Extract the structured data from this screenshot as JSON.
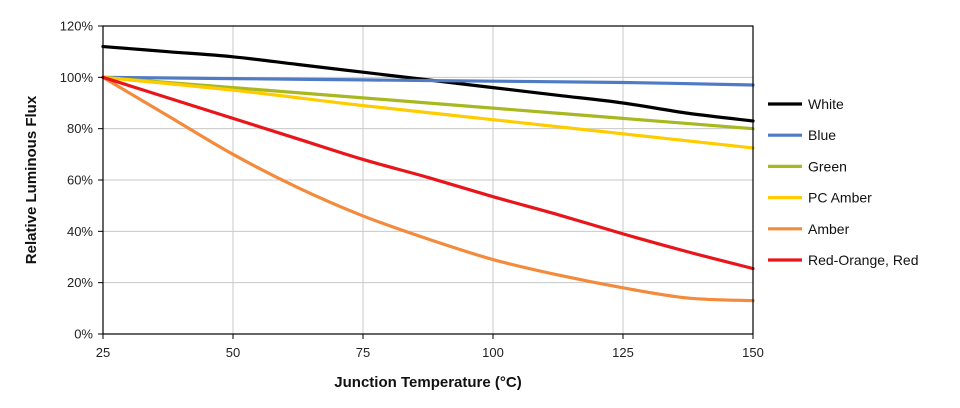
{
  "chart_data": {
    "type": "line",
    "xlabel": "Junction Temperature (°C)",
    "ylabel": "Relative Luminous Flux",
    "xlim": [
      25,
      150
    ],
    "ylim": [
      0,
      120
    ],
    "x_ticks": [
      "25",
      "50",
      "75",
      "100",
      "125",
      "150"
    ],
    "y_ticks": [
      "0%",
      "20%",
      "40%",
      "60%",
      "80%",
      "100%",
      "120%"
    ],
    "grid": true,
    "legend_position": "right",
    "series": [
      {
        "name": "White",
        "color": "#000000",
        "x": [
          25,
          37.5,
          50,
          62.5,
          75,
          87.5,
          100,
          112.5,
          125,
          137.5,
          150
        ],
        "y": [
          112,
          110,
          108,
          105,
          102,
          99,
          96,
          93,
          90,
          86,
          83
        ]
      },
      {
        "name": "Blue",
        "color": "#4f7bc4",
        "x": [
          25,
          50,
          75,
          100,
          125,
          150
        ],
        "y": [
          100,
          99.5,
          99,
          98.5,
          98,
          97
        ]
      },
      {
        "name": "Green",
        "color": "#a8b820",
        "x": [
          25,
          50,
          75,
          100,
          125,
          150
        ],
        "y": [
          100,
          96,
          92,
          88,
          84,
          80
        ]
      },
      {
        "name": "PC Amber",
        "color": "#ffcc00",
        "x": [
          25,
          50,
          75,
          100,
          125,
          150
        ],
        "y": [
          100,
          95,
          89,
          83.5,
          78,
          72.5
        ]
      },
      {
        "name": "Amber",
        "color": "#f48a3c",
        "x": [
          25,
          37.5,
          50,
          62.5,
          75,
          87.5,
          100,
          112.5,
          125,
          137.5,
          150
        ],
        "y": [
          100,
          85,
          70,
          57,
          46,
          37,
          29,
          23,
          18,
          14,
          13
        ]
      },
      {
        "name": "Red-Orange, Red",
        "color": "#e8161b",
        "x": [
          25,
          37.5,
          50,
          62.5,
          75,
          87.5,
          100,
          112.5,
          125,
          137.5,
          150
        ],
        "y": [
          100,
          92,
          84,
          76,
          68,
          61,
          53.5,
          46.5,
          39,
          32,
          25.5
        ]
      }
    ]
  }
}
